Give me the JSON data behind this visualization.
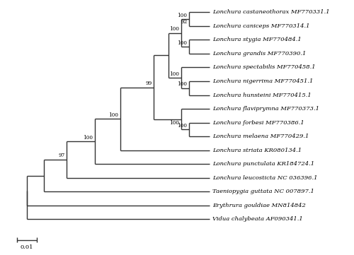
{
  "taxa": [
    "Lonchura castaneothorax MF770331.1",
    "Lonchura caniceps MF770314.1",
    "Lonchura stygia MF770484.1",
    "Lonchura grandis MF770390.1",
    "Lonchura spectabilis MF770458.1",
    "Lonchura nigerrima MF770451.1",
    "Lonchura hunsteini MF770415.1",
    "Lonchura flaviprymna MF770373.1",
    "Lonchura forbesi MF770386.1",
    "Lonchura melaena MF770429.1",
    "Lonchura striata KR080134.1",
    "Lonchura punctulata KR184724.1",
    "Lonchura leucosticta NC 036396.1",
    "Taeniopygia guttata NC 007897.1",
    "Erythrura gouldiae MN814842",
    "Vidua chalybeata AF090341.1"
  ],
  "line_color": "#333333",
  "line_width": 1.0,
  "font_size": 6.0,
  "scale_label": "0.01",
  "background": "#ffffff"
}
